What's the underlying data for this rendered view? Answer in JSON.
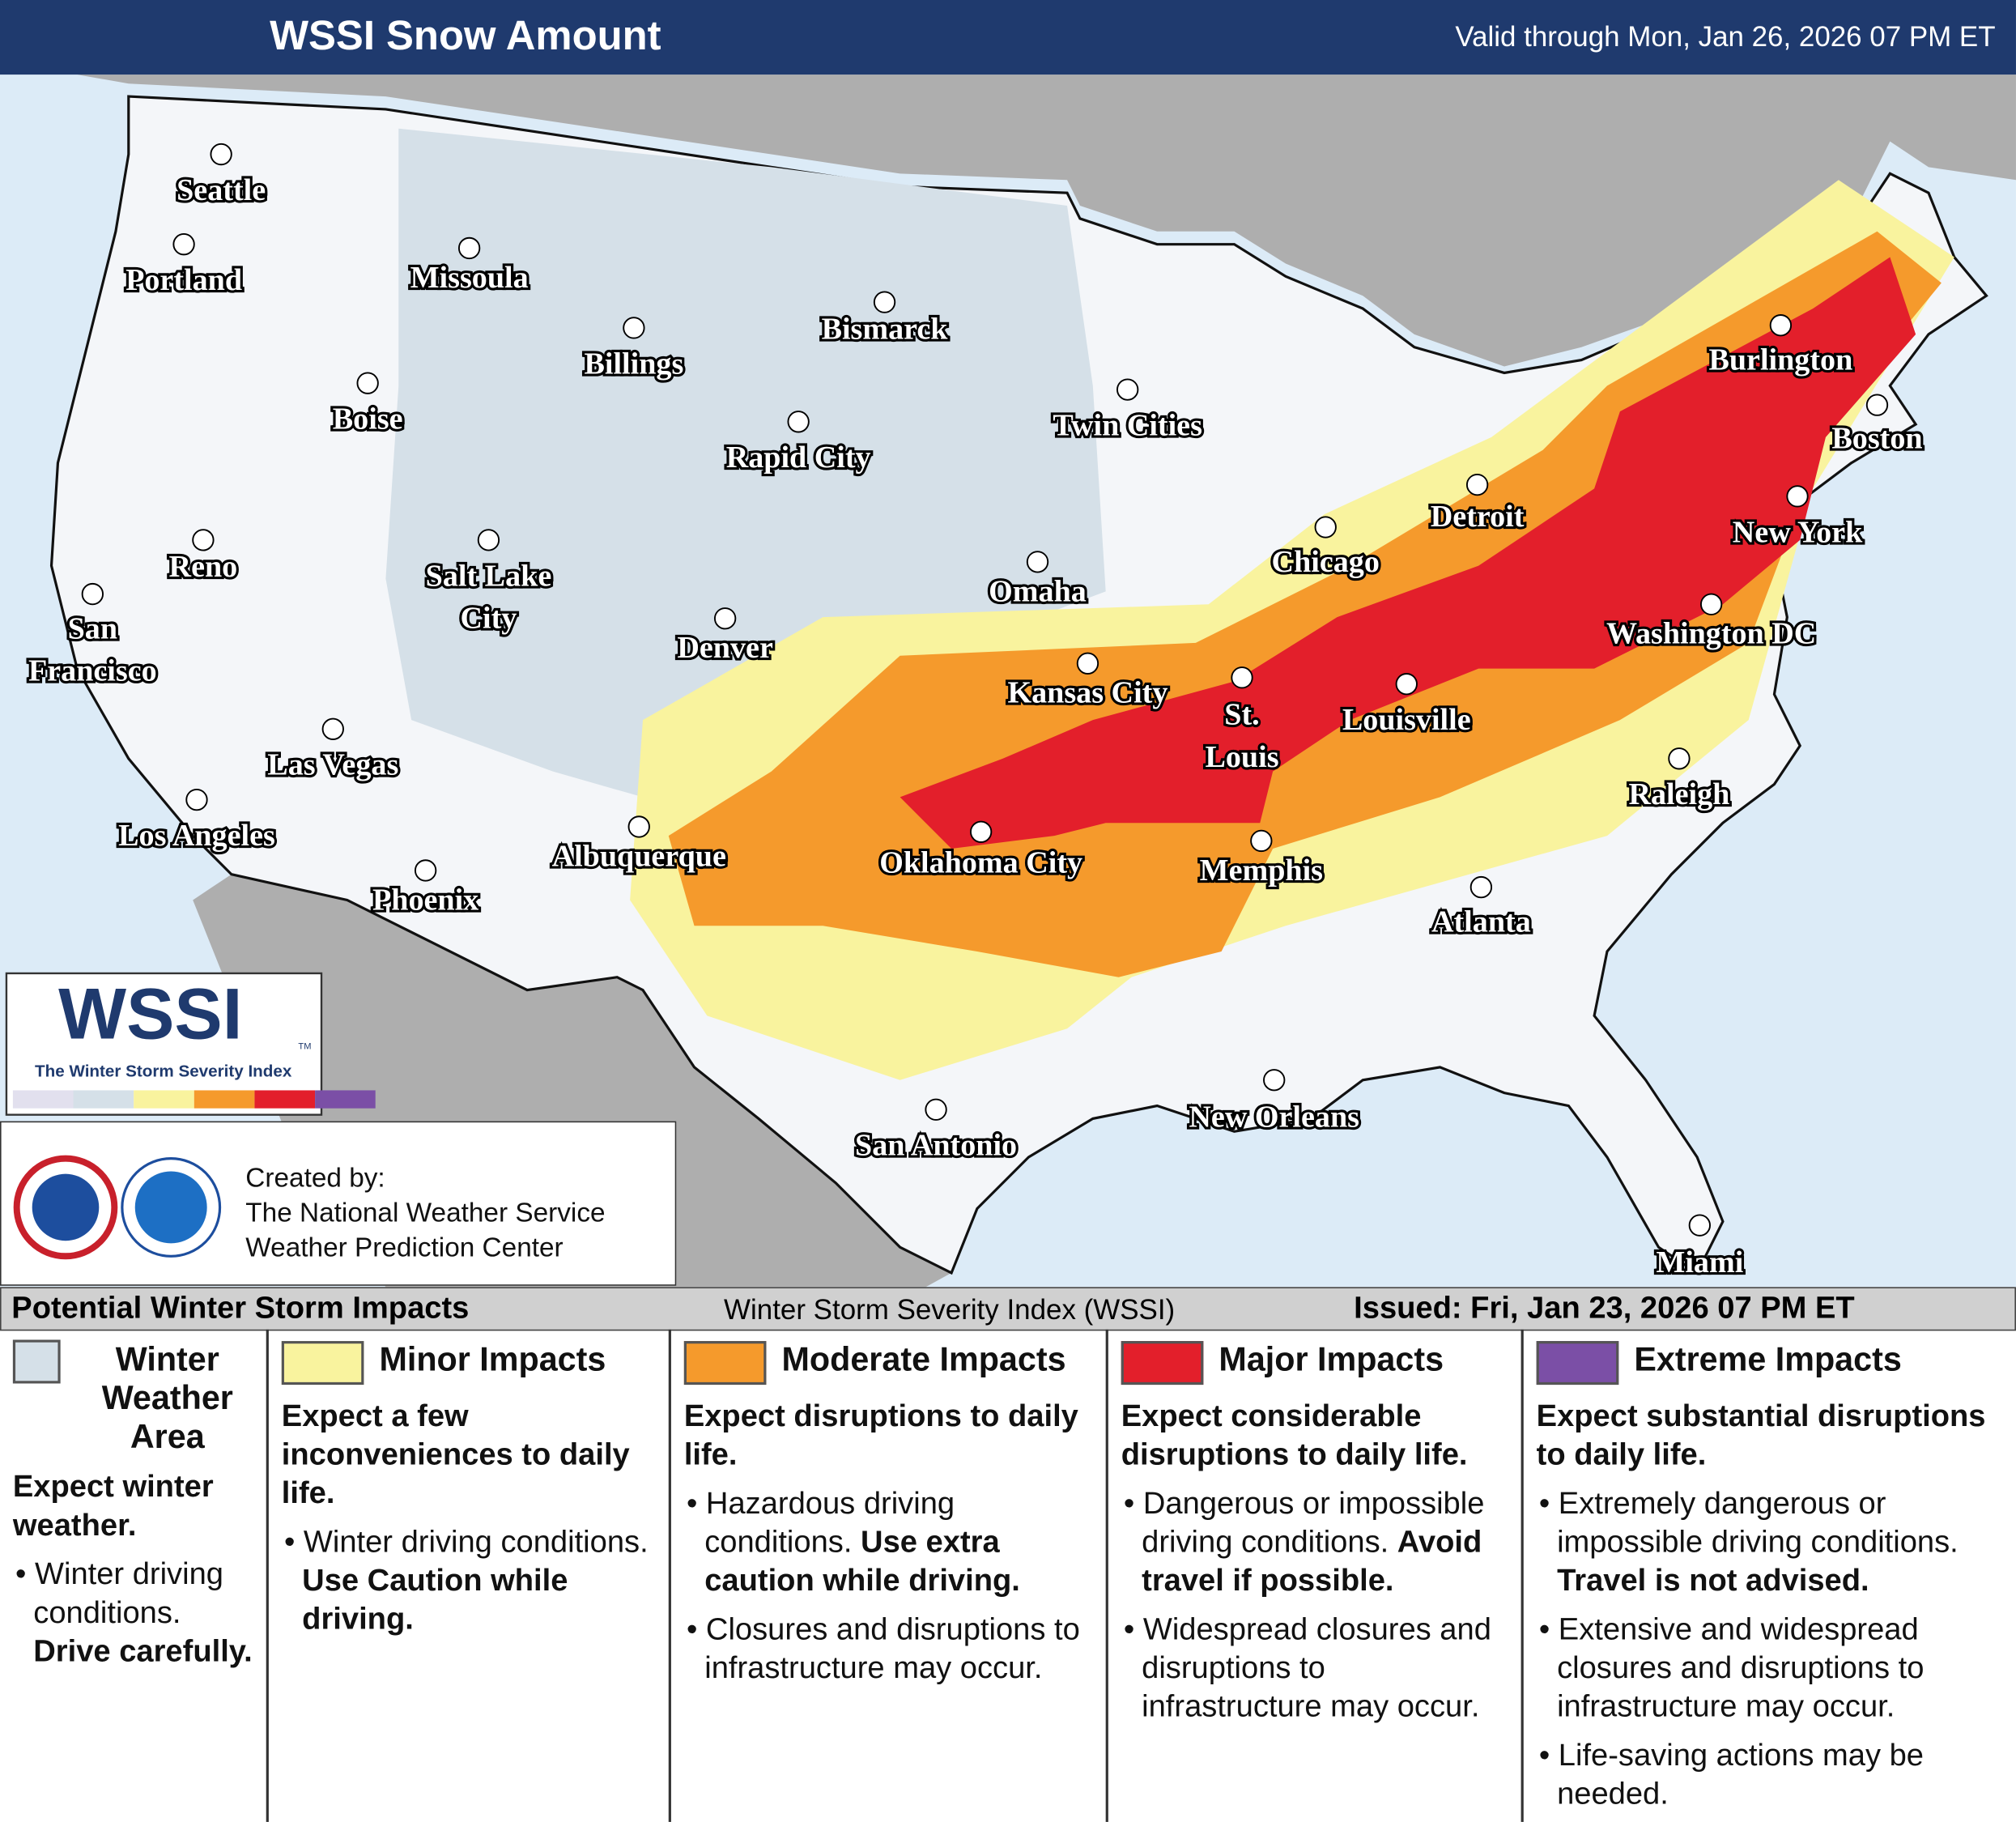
{
  "header": {
    "title": "WSSI Snow Amount",
    "valid": "Valid through Mon, Jan 26, 2026 07 PM ET"
  },
  "cities": [
    {
      "lines": [
        "Seattle"
      ]
    },
    {
      "lines": [
        "Portland"
      ]
    },
    {
      "lines": [
        "Missoula"
      ]
    },
    {
      "lines": [
        "Billings"
      ]
    },
    {
      "lines": [
        "Bismarck"
      ]
    },
    {
      "lines": [
        "Boise"
      ]
    },
    {
      "lines": [
        "Rapid City"
      ]
    },
    {
      "lines": [
        "Twin Cities"
      ]
    },
    {
      "lines": [
        "Burlington"
      ]
    },
    {
      "lines": [
        "Boston"
      ]
    },
    {
      "lines": [
        "Detroit"
      ]
    },
    {
      "lines": [
        "New York"
      ]
    },
    {
      "lines": [
        "Reno"
      ]
    },
    {
      "lines": [
        "Salt Lake",
        "City"
      ]
    },
    {
      "lines": [
        "Chicago"
      ]
    },
    {
      "lines": [
        "Omaha"
      ]
    },
    {
      "lines": [
        "San",
        "Francisco"
      ]
    },
    {
      "lines": [
        "Denver"
      ]
    },
    {
      "lines": [
        "Washington DC"
      ]
    },
    {
      "lines": [
        "Kansas City"
      ]
    },
    {
      "lines": [
        "St.",
        "Louis"
      ]
    },
    {
      "lines": [
        "Louisville"
      ]
    },
    {
      "lines": [
        "Las Vegas"
      ]
    },
    {
      "lines": [
        "Raleigh"
      ]
    },
    {
      "lines": [
        "Los Angeles"
      ]
    },
    {
      "lines": [
        "Albuquerque"
      ]
    },
    {
      "lines": [
        "Oklahoma City"
      ]
    },
    {
      "lines": [
        "Memphis"
      ]
    },
    {
      "lines": [
        "Phoenix"
      ]
    },
    {
      "lines": [
        "Atlanta"
      ]
    },
    {
      "lines": [
        "New Orleans"
      ]
    },
    {
      "lines": [
        "San Antonio"
      ]
    },
    {
      "lines": [
        "Miami"
      ]
    }
  ],
  "logo": {
    "title": "WSSI",
    "subtitle": "The Winter Storm Severity Index",
    "mark": "TM"
  },
  "credit": {
    "lines": [
      "Created by:",
      "The National Weather Service",
      "Weather Prediction Center"
    ]
  },
  "footer": {
    "left": "Potential Winter Storm Impacts",
    "center": "Winter Storm Severity Index (WSSI)",
    "right": "Issued: Fri, Jan 23, 2026 07 PM ET"
  },
  "legend": [
    {
      "name": "Winter Weather Area",
      "color": "#d5e0e8",
      "heading": "Expect winter weather.",
      "bullets": [
        {
          "text": "Winter driving conditions.",
          "emphasis": "Drive carefully."
        }
      ]
    },
    {
      "name": "Minor Impacts",
      "color": "#f9f39e",
      "heading": "Expect a few inconveniences to daily life.",
      "bullets": [
        {
          "text": "Winter driving conditions.",
          "emphasis": "Use Caution while driving."
        }
      ]
    },
    {
      "name": "Moderate Impacts",
      "color": "#f59a2c",
      "heading": "Expect disruptions to daily life.",
      "bullets": [
        {
          "text": "Hazardous driving conditions.",
          "emphasis": "Use extra caution while driving."
        },
        {
          "text": "Closures and disruptions to infrastructure may occur."
        }
      ]
    },
    {
      "name": "Major Impacts",
      "color": "#e31f2b",
      "heading": "Expect considerable disruptions to daily life.",
      "bullets": [
        {
          "text": "Dangerous or impossible driving conditions.",
          "emphasis": "Avoid travel if possible."
        },
        {
          "text": "Widespread closures and disruptions to infrastructure may occur."
        }
      ]
    },
    {
      "name": "Extreme Impacts",
      "color": "#7b4fa6",
      "heading": "Expect substantial disruptions to daily life.",
      "bullets": [
        {
          "text": "Extremely dangerous or impossible driving conditions.",
          "emphasis": "Travel is not advised."
        },
        {
          "text": "Extensive and widespread closures and disruptions to infrastructure may occur."
        },
        {
          "text": "Life-saving actions may be needed."
        }
      ]
    }
  ]
}
